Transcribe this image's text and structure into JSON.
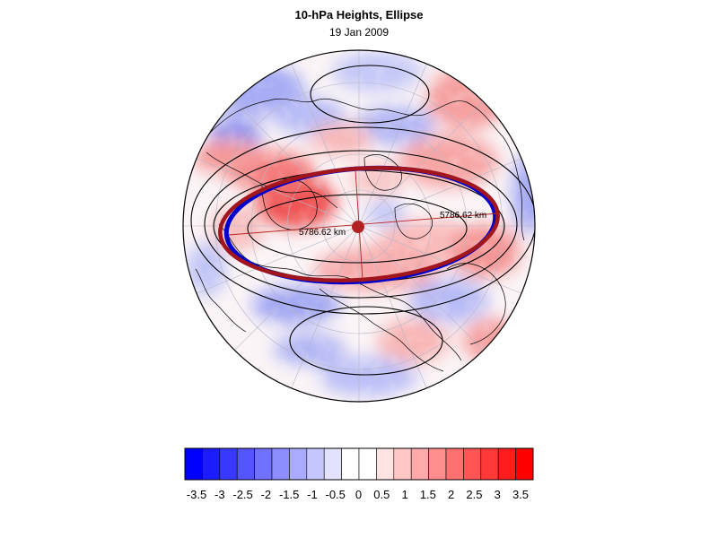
{
  "header": {
    "title": "10-hPa Heights, Ellipse",
    "date": "19 Jan 2009"
  },
  "map": {
    "projection": "polar-stereographic",
    "center_marker_color": "#b22222",
    "fitted_ellipse_color": "#a0161c",
    "observed_contour_color": "#0000cc",
    "height_contour_color": "#000000",
    "coastline_color": "#000000",
    "gridline_color": "#b8b8c8",
    "distance_labels": [
      {
        "text": "5786.62 km"
      },
      {
        "text": "5786.62 km"
      }
    ]
  },
  "colorbar": {
    "colors": [
      "#0000ff",
      "#1c1cff",
      "#3838ff",
      "#5555ff",
      "#7171ff",
      "#8d8dff",
      "#aaaaff",
      "#c6c6ff",
      "#e2e2ff",
      "#ffffff",
      "#ffffff",
      "#ffe2e2",
      "#ffc6c6",
      "#ffaaaa",
      "#ff8d8d",
      "#ff7171",
      "#ff5555",
      "#ff3838",
      "#ff1c1c",
      "#ff0000"
    ],
    "labels": [
      "-3.5",
      "-3",
      "-2.5",
      "-2",
      "-1.5",
      "-1",
      "-0.5",
      "0",
      "0.5",
      "1",
      "1.5",
      "2",
      "2.5",
      "3",
      "3.5"
    ]
  }
}
